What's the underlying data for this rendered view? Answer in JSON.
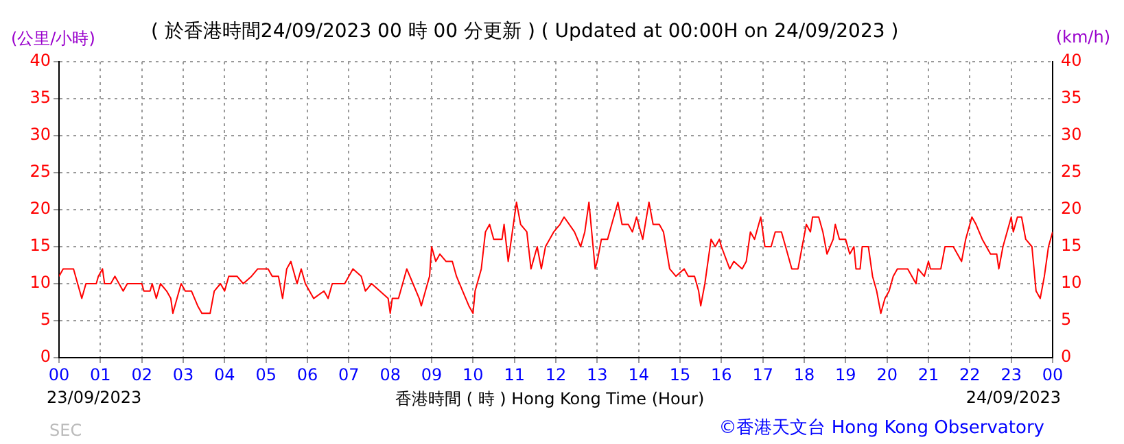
{
  "chart_data": {
    "type": "line",
    "title": "( 於香港時間24/09/2023 00 時 00 分更新 ) ( Updated at 00:00H on 24/09/2023 )",
    "xlabel": "香港時間 ( 時 )  Hong Kong Time (Hour)",
    "ylabel": "(公里/小時)",
    "y2label": "(km/h)",
    "annotations": [
      "23/09/2023",
      "24/09/2023",
      "©香港天文台 Hong Kong Observatory",
      "SEC"
    ],
    "xlim": [
      0,
      24
    ],
    "xticks": [
      {
        "value": 0,
        "label": "00"
      },
      {
        "value": 1,
        "label": "01"
      },
      {
        "value": 2,
        "label": "02"
      },
      {
        "value": 3,
        "label": "03"
      },
      {
        "value": 4,
        "label": "04"
      },
      {
        "value": 5,
        "label": "05"
      },
      {
        "value": 6,
        "label": "06"
      },
      {
        "value": 7,
        "label": "07"
      },
      {
        "value": 8,
        "label": "08"
      },
      {
        "value": 9,
        "label": "09"
      },
      {
        "value": 10,
        "label": "10"
      },
      {
        "value": 11,
        "label": "11"
      },
      {
        "value": 12,
        "label": "12"
      },
      {
        "value": 13,
        "label": "13"
      },
      {
        "value": 14,
        "label": "14"
      },
      {
        "value": 15,
        "label": "15"
      },
      {
        "value": 16,
        "label": "16"
      },
      {
        "value": 17,
        "label": "17"
      },
      {
        "value": 18,
        "label": "18"
      },
      {
        "value": 19,
        "label": "19"
      },
      {
        "value": 20,
        "label": "20"
      },
      {
        "value": 21,
        "label": "21"
      },
      {
        "value": 22,
        "label": "22"
      },
      {
        "value": 23,
        "label": "23"
      },
      {
        "value": 24,
        "label": "00"
      }
    ],
    "ylim": [
      0,
      40
    ],
    "yticks": [
      0,
      5,
      10,
      15,
      20,
      25,
      30,
      35,
      40
    ],
    "y2lim": [
      0,
      40
    ],
    "y2ticks": [
      0,
      5,
      10,
      15,
      20,
      25,
      30,
      35,
      40
    ],
    "grid": true,
    "legend": false,
    "marker": "none",
    "line_style": "solid",
    "series": [
      {
        "color": "#ff0000",
        "x": [
          0,
          0.1,
          0.35,
          0.45,
          0.55,
          0.65,
          0.9,
          0.95,
          1.05,
          1.1,
          1.25,
          1.35,
          1.45,
          1.55,
          1.65,
          2.0,
          2.05,
          2.2,
          2.25,
          2.35,
          2.45,
          2.6,
          2.7,
          2.75,
          2.85,
          2.95,
          3.05,
          3.2,
          3.35,
          3.45,
          3.65,
          3.75,
          3.9,
          4.0,
          4.1,
          4.3,
          4.45,
          4.65,
          4.8,
          5.05,
          5.15,
          5.3,
          5.4,
          5.5,
          5.6,
          5.75,
          5.85,
          5.95,
          6.05,
          6.15,
          6.4,
          6.5,
          6.6,
          6.9,
          7.0,
          7.1,
          7.3,
          7.4,
          7.55,
          7.75,
          7.95,
          8.0,
          8.05,
          8.2,
          8.3,
          8.4,
          8.55,
          8.7,
          8.75,
          8.85,
          8.95,
          9.0,
          9.1,
          9.2,
          9.35,
          9.5,
          9.6,
          9.75,
          9.9,
          10.0,
          10.05,
          10.2,
          10.3,
          10.4,
          10.5,
          10.7,
          10.75,
          10.85,
          10.95,
          11.05,
          11.15,
          11.3,
          11.4,
          11.55,
          11.65,
          11.75,
          11.95,
          12.1,
          12.2,
          12.45,
          12.6,
          12.7,
          12.8,
          12.95,
          13.0,
          13.1,
          13.25,
          13.35,
          13.5,
          13.6,
          13.75,
          13.85,
          13.95,
          14.1,
          14.25,
          14.35,
          14.5,
          14.6,
          14.75,
          14.9,
          15.1,
          15.2,
          15.35,
          15.45,
          15.5,
          15.6,
          15.75,
          15.85,
          15.95,
          16.0,
          16.2,
          16.3,
          16.5,
          16.6,
          16.7,
          16.8,
          16.95,
          17.05,
          17.2,
          17.3,
          17.45,
          17.55,
          17.7,
          17.85,
          17.95,
          18.05,
          18.15,
          18.2,
          18.35,
          18.45,
          18.55,
          18.7,
          18.75,
          18.85,
          19.0,
          19.1,
          19.2,
          19.25,
          19.35,
          19.4,
          19.55,
          19.65,
          19.75,
          19.85,
          19.95,
          20.05,
          20.15,
          20.25,
          20.5,
          20.6,
          20.7,
          20.75,
          20.9,
          21.0,
          21.05,
          21.3,
          21.4,
          21.6,
          21.7,
          21.8,
          21.9,
          22.0,
          22.05,
          22.15,
          22.3,
          22.5,
          22.65,
          22.7,
          22.8,
          22.9,
          23.0,
          23.05,
          23.15,
          23.25,
          23.35,
          23.5,
          23.6,
          23.7,
          23.8,
          23.9,
          24.0
        ],
        "values": [
          11,
          12,
          12,
          10,
          8,
          10,
          10,
          11,
          12,
          10,
          10,
          11,
          10,
          9,
          10,
          10,
          9,
          9,
          10,
          8,
          10,
          9,
          8,
          6,
          8,
          10,
          9,
          9,
          7,
          6,
          6,
          9,
          10,
          9,
          11,
          11,
          10,
          11,
          12,
          12,
          11,
          11,
          8,
          12,
          13,
          10,
          12,
          10,
          9,
          8,
          9,
          8,
          10,
          10,
          11,
          12,
          11,
          9,
          10,
          9,
          8,
          6,
          8,
          8,
          10,
          12,
          10,
          8,
          7,
          9,
          11,
          15,
          13,
          14,
          13,
          13,
          11,
          9,
          7,
          6,
          9,
          12,
          17,
          18,
          16,
          16,
          18,
          13,
          17,
          21,
          18,
          17,
          12,
          15,
          12,
          15,
          17,
          18,
          19,
          17,
          15,
          17,
          21,
          12,
          13,
          16,
          16,
          18,
          21,
          18,
          18,
          17,
          19,
          16,
          21,
          18,
          18,
          17,
          12,
          11,
          12,
          11,
          11,
          9,
          7,
          10,
          16,
          15,
          16,
          15,
          12,
          13,
          12,
          13,
          17,
          16,
          19,
          15,
          15,
          17,
          17,
          15,
          12,
          12,
          15,
          18,
          17,
          19,
          19,
          17,
          14,
          16,
          18,
          16,
          16,
          14,
          15,
          12,
          12,
          15,
          15,
          11,
          9,
          6,
          8,
          9,
          11,
          12,
          12,
          11,
          10,
          12,
          11,
          13,
          12,
          12,
          15,
          15,
          14,
          13,
          16,
          18,
          19,
          18,
          16,
          14,
          14,
          12,
          15,
          17,
          19,
          17,
          19,
          19,
          16,
          15,
          9,
          8,
          11,
          15,
          17
        ]
      }
    ]
  }
}
